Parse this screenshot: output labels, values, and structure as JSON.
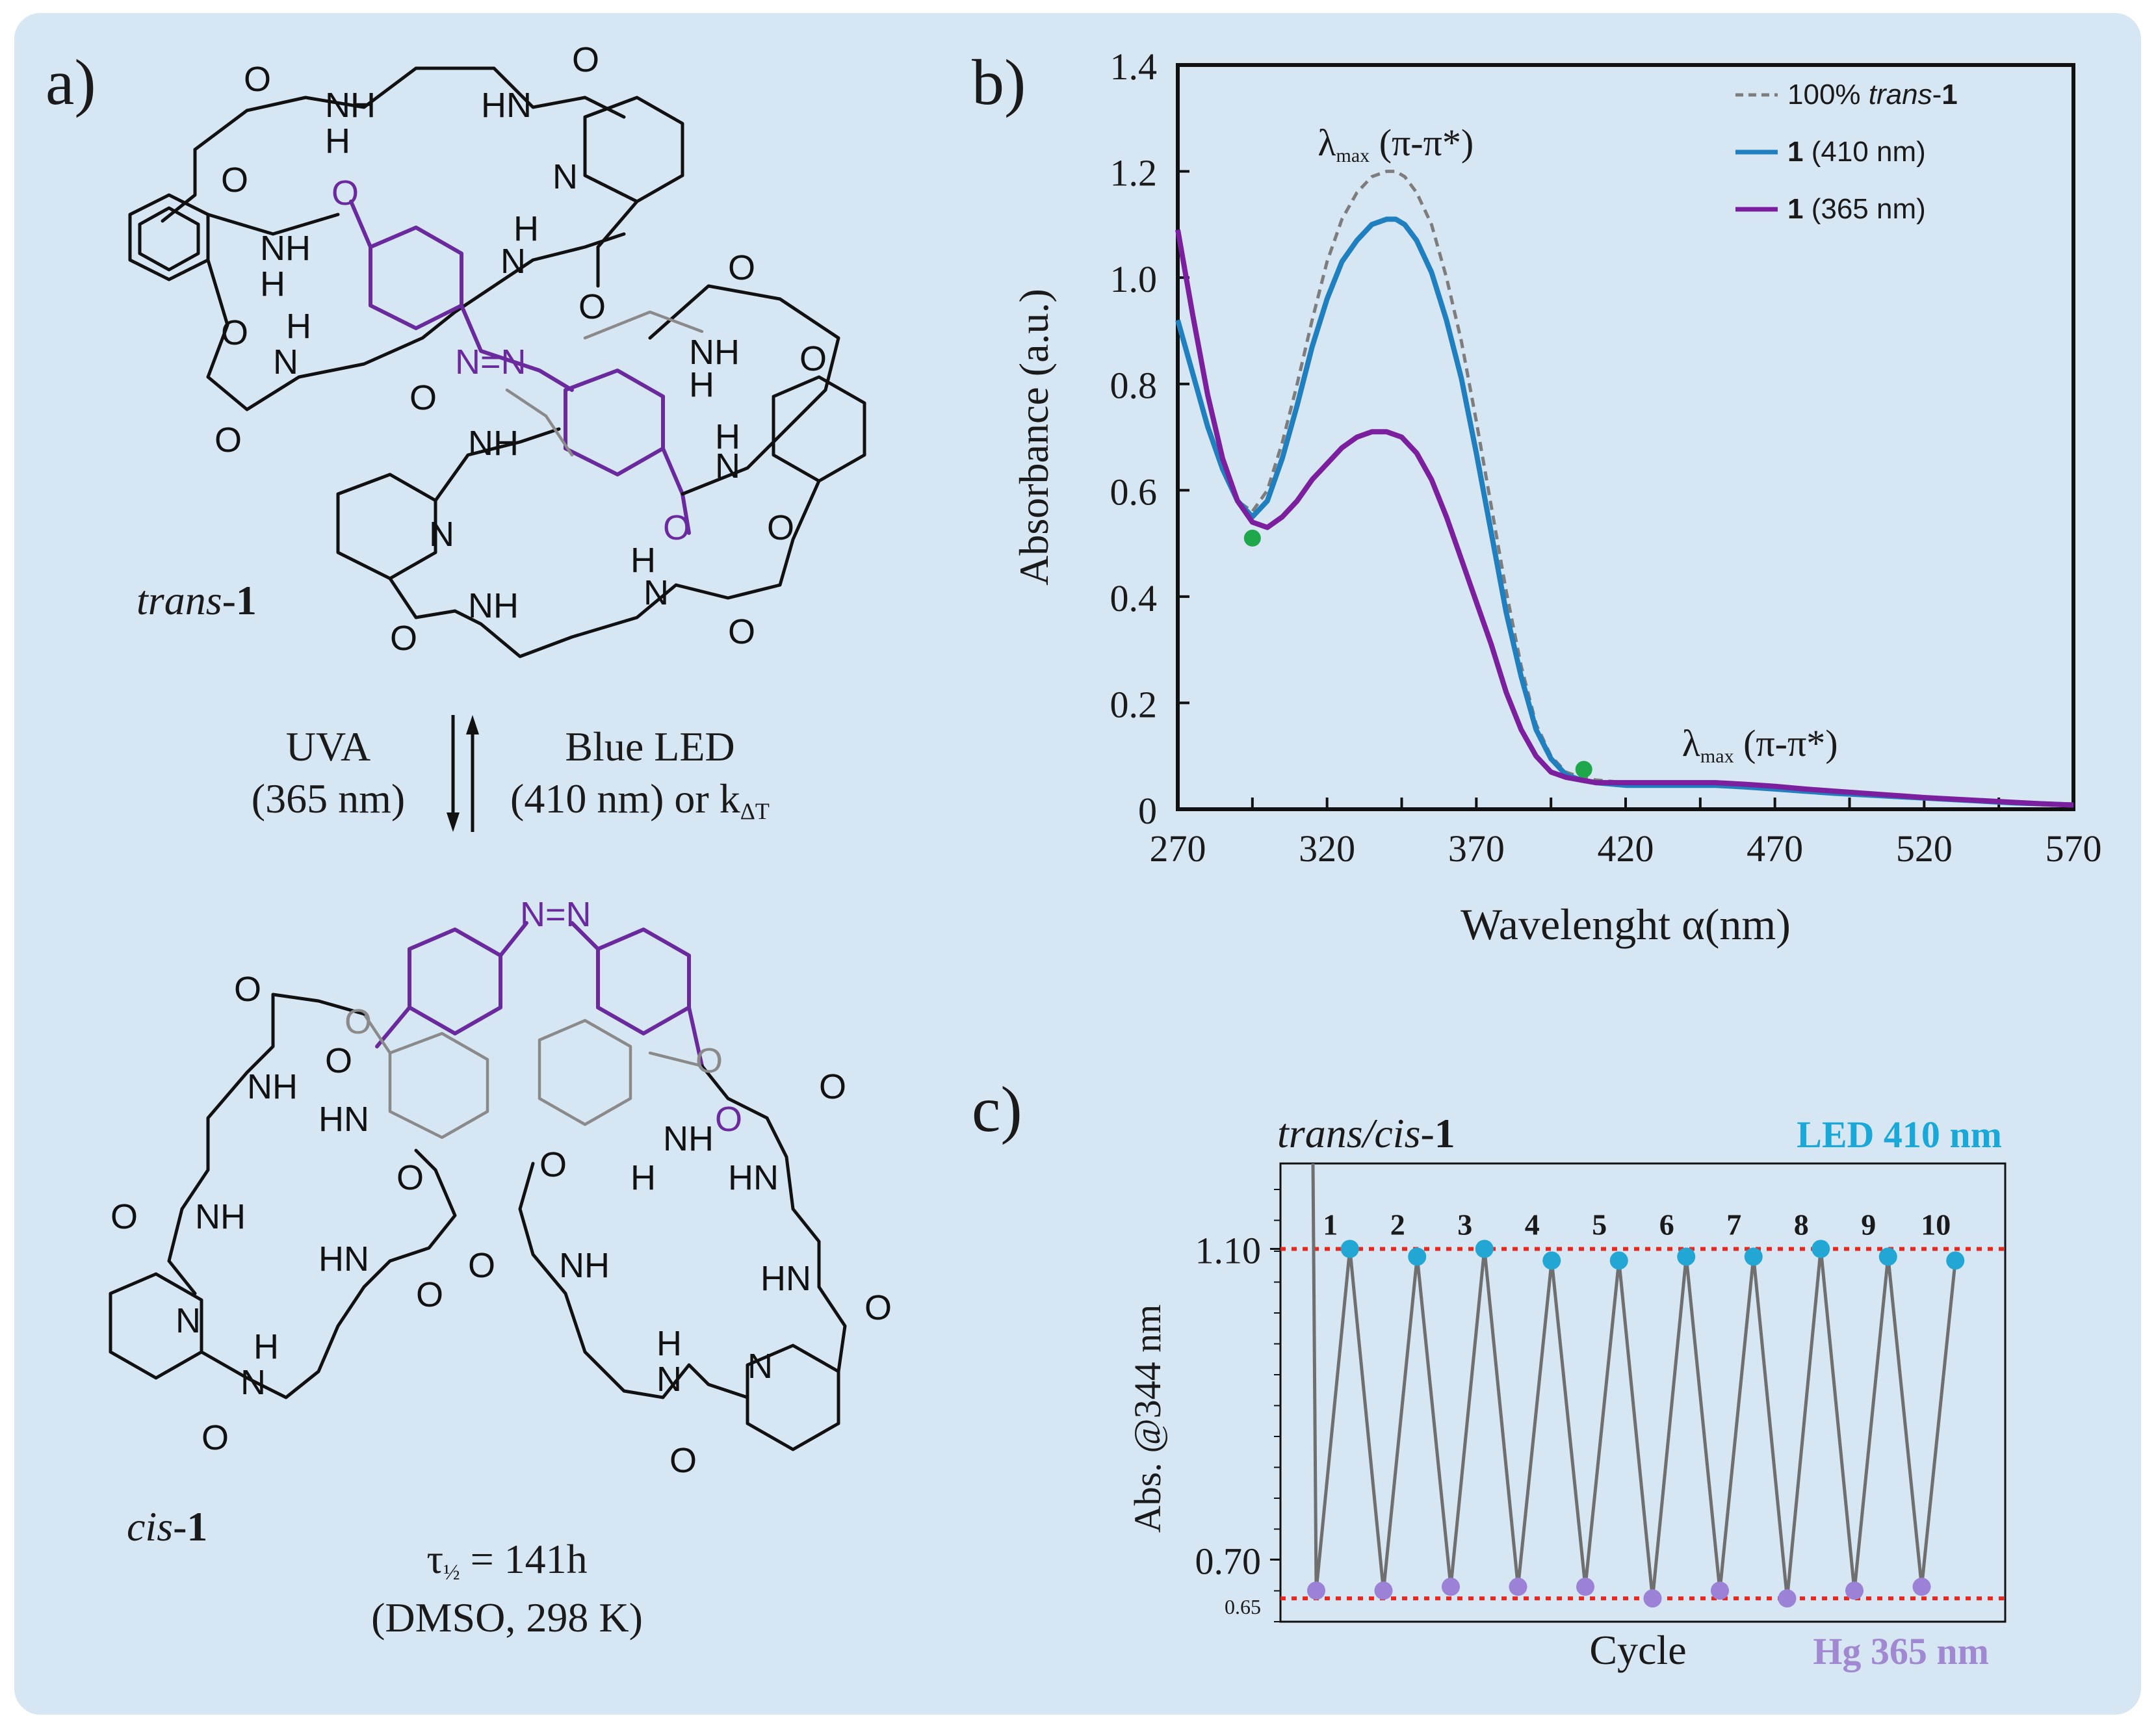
{
  "panel_a": {
    "label": "a)",
    "trans_name": {
      "italic": "trans",
      "sep": "-",
      "bold": "1"
    },
    "cis_name": {
      "italic": "cis",
      "sep": "-",
      "bold": "1"
    },
    "uva": {
      "line1": "UVA",
      "line2": "(365 nm)"
    },
    "blue_led": {
      "line1": "Blue LED",
      "line2a": "(410 nm) or k",
      "line2sub": "ΔT"
    },
    "half_life": {
      "tau": "τ",
      "sub": "½",
      "rest": " = 141h",
      "cond": "(DMSO, 298 K)"
    },
    "atoms": {
      "O": "O",
      "NH": "NH",
      "HN": "HN",
      "N": "N",
      "H": "H",
      "azo": "N=N"
    }
  },
  "colors": {
    "background": "#d7e6f3",
    "purple": "#6a2a9e",
    "blue_series": "#1f7fbf",
    "purple_series": "#7b1f9e",
    "dashed": "#7d7d7d",
    "green_dot": "#1ea84b",
    "red_line": "#e8281e",
    "cyan_marker": "#22a6d4",
    "lilac_marker": "#9b82d6",
    "led_text": "#1aa8d8",
    "hg_text": "#a089d1"
  },
  "chart_data": [
    {
      "id": "b",
      "panel_label": "b)",
      "type": "line",
      "xlabel": "Wavelenght α(nm)",
      "ylabel": "Absorbance (a.u.)",
      "xlim": [
        270,
        570
      ],
      "ylim": [
        0,
        1.4
      ],
      "xticks": [
        "270",
        "320",
        "370",
        "420",
        "470",
        "520",
        "570"
      ],
      "yticks": [
        "0",
        "0.2",
        "0.4",
        "0.6",
        "0.8",
        "1.0",
        "1.2",
        "1.4"
      ],
      "annotations": [
        {
          "text": "λ",
          "sub": "max",
          "rest": " (π-π*)",
          "x": 343,
          "y": 1.23
        },
        {
          "text": "λ",
          "sub": "max",
          "rest": " (π-π*)",
          "x": 465,
          "y": 0.1
        }
      ],
      "isosbestic_points": [
        {
          "x": 295,
          "y": 0.51
        },
        {
          "x": 406,
          "y": 0.075
        }
      ],
      "legend": [
        {
          "prefix": "100% ",
          "italic": "trans",
          "suffix": "-",
          "bold": "1"
        },
        {
          "prefix": "",
          "italic": "",
          "suffix": "",
          "bold": "1",
          "tail": " (410 nm)"
        },
        {
          "prefix": "",
          "italic": "",
          "suffix": "",
          "bold": "1",
          "tail": " (365 nm)"
        }
      ],
      "series": [
        {
          "name": "100% trans-1",
          "style": "dashed",
          "x": [
            270,
            275,
            280,
            285,
            290,
            295,
            300,
            305,
            310,
            315,
            320,
            325,
            330,
            335,
            340,
            343,
            346,
            350,
            355,
            360,
            365,
            370,
            375,
            380,
            385,
            390,
            395,
            400,
            405,
            410,
            420,
            430,
            440,
            450,
            460,
            470,
            480,
            490,
            500,
            510,
            520,
            530,
            540,
            550,
            560,
            570
          ],
          "y": [
            0.92,
            0.82,
            0.72,
            0.64,
            0.58,
            0.56,
            0.6,
            0.69,
            0.8,
            0.92,
            1.03,
            1.11,
            1.16,
            1.19,
            1.2,
            1.2,
            1.19,
            1.16,
            1.1,
            1.0,
            0.88,
            0.73,
            0.57,
            0.41,
            0.27,
            0.16,
            0.1,
            0.07,
            0.06,
            0.055,
            0.05,
            0.05,
            0.05,
            0.05,
            0.045,
            0.04,
            0.035,
            0.03,
            0.028,
            0.025,
            0.022,
            0.018,
            0.015,
            0.012,
            0.01,
            0.008
          ]
        },
        {
          "name": "1 (410 nm)",
          "style": "solid",
          "x": [
            270,
            275,
            280,
            285,
            290,
            295,
            300,
            305,
            310,
            315,
            320,
            325,
            330,
            335,
            340,
            343,
            346,
            350,
            355,
            360,
            365,
            370,
            375,
            380,
            385,
            390,
            395,
            400,
            405,
            410,
            420,
            430,
            440,
            450,
            460,
            470,
            480,
            490,
            500,
            510,
            520,
            530,
            540,
            550,
            560,
            570
          ],
          "y": [
            0.92,
            0.82,
            0.72,
            0.64,
            0.58,
            0.55,
            0.58,
            0.66,
            0.76,
            0.87,
            0.96,
            1.03,
            1.07,
            1.1,
            1.11,
            1.11,
            1.1,
            1.07,
            1.01,
            0.92,
            0.81,
            0.67,
            0.52,
            0.37,
            0.25,
            0.15,
            0.095,
            0.065,
            0.055,
            0.05,
            0.045,
            0.045,
            0.045,
            0.045,
            0.042,
            0.038,
            0.034,
            0.03,
            0.027,
            0.024,
            0.021,
            0.018,
            0.015,
            0.012,
            0.01,
            0.008
          ]
        },
        {
          "name": "1 (365 nm)",
          "style": "solid",
          "x": [
            270,
            275,
            280,
            285,
            290,
            295,
            300,
            305,
            310,
            315,
            320,
            325,
            330,
            335,
            340,
            345,
            350,
            355,
            360,
            365,
            370,
            375,
            380,
            385,
            390,
            395,
            400,
            405,
            410,
            420,
            430,
            440,
            450,
            460,
            470,
            480,
            490,
            500,
            510,
            520,
            530,
            540,
            550,
            560,
            570
          ],
          "y": [
            1.09,
            0.93,
            0.78,
            0.66,
            0.58,
            0.54,
            0.53,
            0.55,
            0.58,
            0.62,
            0.65,
            0.68,
            0.7,
            0.71,
            0.71,
            0.7,
            0.67,
            0.62,
            0.55,
            0.47,
            0.39,
            0.31,
            0.22,
            0.15,
            0.1,
            0.07,
            0.06,
            0.055,
            0.05,
            0.05,
            0.05,
            0.05,
            0.05,
            0.047,
            0.043,
            0.038,
            0.034,
            0.03,
            0.026,
            0.022,
            0.019,
            0.016,
            0.013,
            0.01,
            0.008
          ]
        }
      ]
    },
    {
      "id": "c",
      "panel_label": "c)",
      "type": "line",
      "title": {
        "italic": "trans/cis",
        "sep": "-",
        "bold": "1"
      },
      "xlabel": "Cycle",
      "ylabel": "Abs. @344 nm",
      "ylim": [
        0.62,
        1.21
      ],
      "yticks": [
        "0.70",
        "1.10"
      ],
      "ytick_values": [
        0.7,
        1.1
      ],
      "small_tick": {
        "label": "0.65",
        "value": 0.65
      },
      "reference_lines": [
        1.1,
        0.65
      ],
      "high_label": "LED 410 nm",
      "low_label": "Hg 365 nm",
      "cycles": [
        "1",
        "2",
        "3",
        "4",
        "5",
        "6",
        "7",
        "8",
        "9",
        "10"
      ],
      "start_value": 1.21,
      "high_values": [
        1.1,
        1.09,
        1.1,
        1.085,
        1.085,
        1.09,
        1.09,
        1.1,
        1.09,
        1.085
      ],
      "low_values": [
        0.66,
        0.66,
        0.665,
        0.665,
        0.665,
        0.65,
        0.66,
        0.65,
        0.66,
        0.665
      ]
    }
  ]
}
